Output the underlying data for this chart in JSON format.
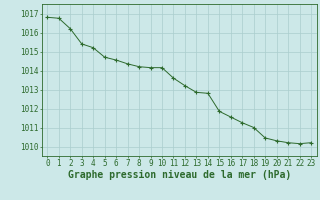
{
  "x": [
    0,
    1,
    2,
    3,
    4,
    5,
    6,
    7,
    8,
    9,
    10,
    11,
    12,
    13,
    14,
    15,
    16,
    17,
    18,
    19,
    20,
    21,
    22,
    23
  ],
  "y": [
    1016.8,
    1016.75,
    1016.2,
    1015.4,
    1015.2,
    1014.7,
    1014.55,
    1014.35,
    1014.2,
    1014.15,
    1014.15,
    1013.6,
    1013.2,
    1012.85,
    1012.8,
    1011.85,
    1011.55,
    1011.25,
    1011.0,
    1010.45,
    1010.3,
    1010.2,
    1010.15,
    1010.2
  ],
  "ylim": [
    1009.5,
    1017.5
  ],
  "yticks": [
    1010,
    1011,
    1012,
    1013,
    1014,
    1015,
    1016,
    1017
  ],
  "xlim": [
    -0.5,
    23.5
  ],
  "xticks": [
    0,
    1,
    2,
    3,
    4,
    5,
    6,
    7,
    8,
    9,
    10,
    11,
    12,
    13,
    14,
    15,
    16,
    17,
    18,
    19,
    20,
    21,
    22,
    23
  ],
  "xlabel": "Graphe pression niveau de la mer (hPa)",
  "line_color": "#2d6a2d",
  "marker": "+",
  "marker_color": "#2d6a2d",
  "bg_color": "#cce8e8",
  "grid_color": "#aacece",
  "axis_color": "#2d6a2d",
  "label_color": "#2d6a2d",
  "tick_label_color": "#2d6a2d",
  "xlabel_fontsize": 7,
  "tick_fontsize": 5.5,
  "xlabel_fontweight": "bold"
}
